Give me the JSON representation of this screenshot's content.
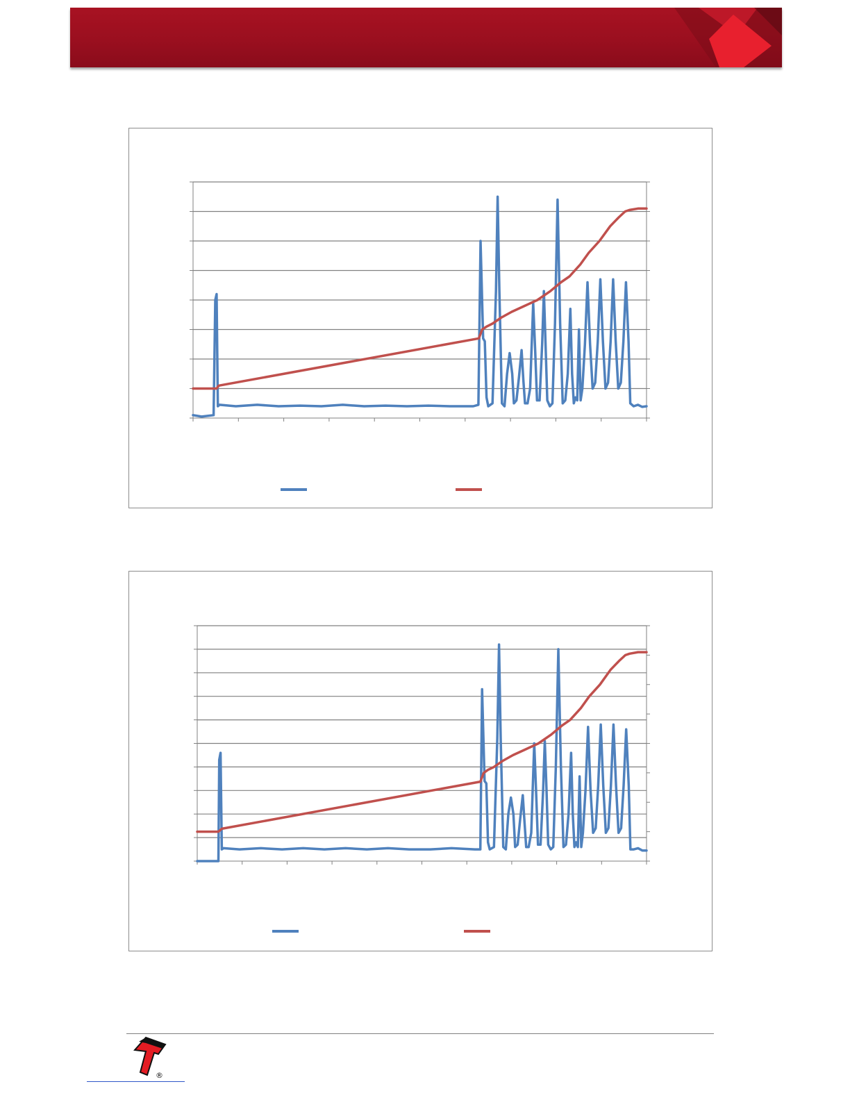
{
  "header": {
    "band_color": "#9a0f1f",
    "accent_color": "#e8202e"
  },
  "footer": {
    "logo_icon": "company-logo-icon",
    "registered_mark": "®"
  },
  "colors": {
    "series_blue": "#4f81bd",
    "series_red": "#c0504d",
    "grid": "#808080"
  },
  "chart_data": [
    {
      "type": "line",
      "grid": true,
      "legend_position": "bottom",
      "left_axis": {
        "min": 0,
        "max": 8,
        "gridlines": 8
      },
      "right_axis": {
        "min": 0,
        "max": 8
      },
      "x_range": [
        0,
        1060
      ],
      "series": [
        {
          "axis": "left",
          "color": "#4f81bd",
          "points": [
            [
              0,
              0.1
            ],
            [
              20,
              0.05
            ],
            [
              48,
              0.1
            ],
            [
              52,
              4.0
            ],
            [
              55,
              4.2
            ],
            [
              58,
              0.4
            ],
            [
              62,
              0.45
            ],
            [
              100,
              0.4
            ],
            [
              150,
              0.45
            ],
            [
              200,
              0.4
            ],
            [
              250,
              0.42
            ],
            [
              300,
              0.4
            ],
            [
              350,
              0.45
            ],
            [
              400,
              0.4
            ],
            [
              450,
              0.42
            ],
            [
              500,
              0.4
            ],
            [
              550,
              0.42
            ],
            [
              600,
              0.4
            ],
            [
              655,
              0.4
            ],
            [
              667,
              0.45
            ],
            [
              672,
              6.0
            ],
            [
              678,
              2.7
            ],
            [
              682,
              2.6
            ],
            [
              686,
              0.7
            ],
            [
              690,
              0.4
            ],
            [
              700,
              0.5
            ],
            [
              708,
              4.3
            ],
            [
              712,
              7.5
            ],
            [
              716,
              4.3
            ],
            [
              722,
              0.5
            ],
            [
              728,
              0.4
            ],
            [
              734,
              1.5
            ],
            [
              740,
              2.2
            ],
            [
              746,
              1.5
            ],
            [
              750,
              0.5
            ],
            [
              756,
              0.6
            ],
            [
              762,
              1.4
            ],
            [
              768,
              2.3
            ],
            [
              772,
              1.3
            ],
            [
              776,
              0.5
            ],
            [
              782,
              0.5
            ],
            [
              788,
              1.0
            ],
            [
              795,
              3.9
            ],
            [
              800,
              2.2
            ],
            [
              804,
              0.6
            ],
            [
              810,
              0.6
            ],
            [
              816,
              2.5
            ],
            [
              820,
              4.3
            ],
            [
              824,
              2.5
            ],
            [
              828,
              0.6
            ],
            [
              834,
              0.4
            ],
            [
              840,
              0.5
            ],
            [
              846,
              3.2
            ],
            [
              852,
              7.4
            ],
            [
              858,
              3.2
            ],
            [
              864,
              0.5
            ],
            [
              870,
              0.6
            ],
            [
              876,
              1.5
            ],
            [
              882,
              3.7
            ],
            [
              886,
              1.5
            ],
            [
              890,
              0.5
            ],
            [
              894,
              0.7
            ],
            [
              898,
              0.6
            ],
            [
              902,
              3.0
            ],
            [
              906,
              0.6
            ],
            [
              910,
              1.0
            ],
            [
              916,
              2.5
            ],
            [
              922,
              4.6
            ],
            [
              928,
              2.5
            ],
            [
              934,
              1.0
            ],
            [
              940,
              1.2
            ],
            [
              946,
              2.6
            ],
            [
              952,
              4.7
            ],
            [
              958,
              2.6
            ],
            [
              964,
              1.0
            ],
            [
              970,
              1.2
            ],
            [
              976,
              2.6
            ],
            [
              982,
              4.7
            ],
            [
              988,
              2.6
            ],
            [
              994,
              1.0
            ],
            [
              1000,
              1.2
            ],
            [
              1006,
              2.6
            ],
            [
              1012,
              4.6
            ],
            [
              1018,
              2.6
            ],
            [
              1022,
              0.5
            ],
            [
              1030,
              0.4
            ],
            [
              1040,
              0.45
            ],
            [
              1050,
              0.38
            ],
            [
              1060,
              0.4
            ]
          ]
        },
        {
          "axis": "right",
          "color": "#c0504d",
          "points": [
            [
              0,
              1.0
            ],
            [
              55,
              1.0
            ],
            [
              60,
              1.1
            ],
            [
              668,
              2.7
            ],
            [
              676,
              3.0
            ],
            [
              686,
              3.1
            ],
            [
              700,
              3.2
            ],
            [
              720,
              3.4
            ],
            [
              745,
              3.6
            ],
            [
              775,
              3.8
            ],
            [
              805,
              4.0
            ],
            [
              835,
              4.3
            ],
            [
              860,
              4.6
            ],
            [
              880,
              4.8
            ],
            [
              905,
              5.2
            ],
            [
              925,
              5.6
            ],
            [
              950,
              6.0
            ],
            [
              975,
              6.5
            ],
            [
              995,
              6.8
            ],
            [
              1010,
              7.0
            ],
            [
              1020,
              7.05
            ],
            [
              1040,
              7.1
            ],
            [
              1060,
              7.1
            ]
          ]
        }
      ]
    },
    {
      "type": "line",
      "grid": true,
      "legend_position": "bottom",
      "left_axis": {
        "min": 0,
        "max": 10,
        "gridlines": 10
      },
      "right_axis": {
        "min": 0,
        "max": 8
      },
      "x_range": [
        0,
        1060
      ],
      "series": [
        {
          "axis": "left",
          "color": "#4f81bd",
          "points": [
            [
              0,
              0.0
            ],
            [
              50,
              0.0
            ],
            [
              52,
              4.3
            ],
            [
              55,
              4.6
            ],
            [
              58,
              0.5
            ],
            [
              62,
              0.55
            ],
            [
              100,
              0.5
            ],
            [
              150,
              0.55
            ],
            [
              200,
              0.5
            ],
            [
              250,
              0.55
            ],
            [
              300,
              0.5
            ],
            [
              350,
              0.55
            ],
            [
              400,
              0.5
            ],
            [
              450,
              0.55
            ],
            [
              500,
              0.5
            ],
            [
              550,
              0.5
            ],
            [
              600,
              0.55
            ],
            [
              655,
              0.5
            ],
            [
              668,
              0.5
            ],
            [
              672,
              7.3
            ],
            [
              678,
              3.4
            ],
            [
              682,
              3.3
            ],
            [
              686,
              0.8
            ],
            [
              690,
              0.5
            ],
            [
              700,
              0.6
            ],
            [
              708,
              5.2
            ],
            [
              712,
              9.2
            ],
            [
              716,
              5.2
            ],
            [
              722,
              0.6
            ],
            [
              728,
              0.5
            ],
            [
              734,
              2.0
            ],
            [
              740,
              2.7
            ],
            [
              746,
              2.0
            ],
            [
              750,
              0.6
            ],
            [
              756,
              0.7
            ],
            [
              762,
              1.8
            ],
            [
              768,
              2.8
            ],
            [
              772,
              1.7
            ],
            [
              776,
              0.6
            ],
            [
              782,
              0.6
            ],
            [
              788,
              1.2
            ],
            [
              795,
              5.0
            ],
            [
              800,
              2.7
            ],
            [
              804,
              0.7
            ],
            [
              810,
              0.7
            ],
            [
              816,
              3.0
            ],
            [
              820,
              5.1
            ],
            [
              824,
              3.0
            ],
            [
              828,
              0.7
            ],
            [
              834,
              0.5
            ],
            [
              840,
              0.6
            ],
            [
              846,
              4.0
            ],
            [
              852,
              9.0
            ],
            [
              858,
              4.0
            ],
            [
              864,
              0.6
            ],
            [
              870,
              0.7
            ],
            [
              876,
              2.0
            ],
            [
              882,
              4.6
            ],
            [
              886,
              2.0
            ],
            [
              890,
              0.6
            ],
            [
              894,
              0.8
            ],
            [
              898,
              0.6
            ],
            [
              902,
              3.6
            ],
            [
              906,
              0.6
            ],
            [
              910,
              1.2
            ],
            [
              916,
              3.0
            ],
            [
              922,
              5.7
            ],
            [
              928,
              3.0
            ],
            [
              934,
              1.2
            ],
            [
              940,
              1.4
            ],
            [
              946,
              3.2
            ],
            [
              952,
              5.8
            ],
            [
              958,
              3.2
            ],
            [
              964,
              1.2
            ],
            [
              970,
              1.4
            ],
            [
              976,
              3.2
            ],
            [
              982,
              5.8
            ],
            [
              988,
              3.2
            ],
            [
              994,
              1.2
            ],
            [
              1000,
              1.4
            ],
            [
              1006,
              3.2
            ],
            [
              1012,
              5.6
            ],
            [
              1018,
              3.2
            ],
            [
              1022,
              0.5
            ],
            [
              1030,
              0.5
            ],
            [
              1040,
              0.55
            ],
            [
              1050,
              0.45
            ],
            [
              1060,
              0.45
            ]
          ]
        },
        {
          "axis": "right",
          "color": "#c0504d",
          "points": [
            [
              0,
              1.0
            ],
            [
              50,
              1.0
            ],
            [
              58,
              1.1
            ],
            [
              668,
              2.7
            ],
            [
              676,
              3.0
            ],
            [
              686,
              3.1
            ],
            [
              700,
              3.2
            ],
            [
              720,
              3.4
            ],
            [
              745,
              3.6
            ],
            [
              775,
              3.8
            ],
            [
              805,
              4.0
            ],
            [
              835,
              4.3
            ],
            [
              860,
              4.6
            ],
            [
              880,
              4.8
            ],
            [
              905,
              5.2
            ],
            [
              925,
              5.6
            ],
            [
              950,
              6.0
            ],
            [
              975,
              6.5
            ],
            [
              995,
              6.8
            ],
            [
              1010,
              7.0
            ],
            [
              1020,
              7.05
            ],
            [
              1040,
              7.1
            ],
            [
              1060,
              7.1
            ]
          ]
        }
      ]
    }
  ]
}
